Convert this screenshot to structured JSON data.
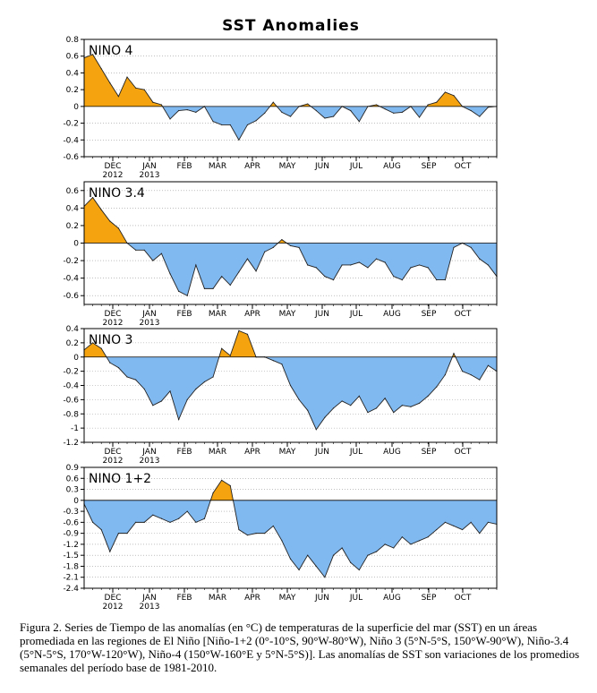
{
  "title": "SST Anomalies",
  "caption": "Figura 2. Series de Tiempo de las anomalías (en °C) de temperaturas de la superficie del mar (SST) en un áreas promediada en las regiones de El Niño [Niño-1+2 (0°-10°S, 90°W-80°W), Niño 3 (5°N-5°S, 150°W-90°W), Niño-3.4 (5°N-5°S, 170°W-120°W), Niño-4 (150°W-160°E y 5°N-5°S)]. Las anomalías de SST son variaciones de los promedios semanales del período base de 1981-2010.",
  "colors": {
    "positive": "#f5a30f",
    "negative": "#80b8f0",
    "grid": "#999999",
    "axis": "#000000"
  },
  "chart_data": [
    {
      "type": "area",
      "label": "NINO 4",
      "x_month_labels": [
        [
          "DEC",
          "2012"
        ],
        [
          "JAN",
          "2013"
        ],
        [
          "FEB",
          ""
        ],
        [
          "MAR",
          ""
        ],
        [
          "APR",
          ""
        ],
        [
          "MAY",
          ""
        ],
        [
          "JUN",
          ""
        ],
        [
          "JUL",
          ""
        ],
        [
          "AUG",
          ""
        ],
        [
          "SEP",
          ""
        ],
        [
          "OCT",
          ""
        ]
      ],
      "y_ticks": [
        "-0.6",
        "-0.4",
        "-0.2",
        "0",
        "0.2",
        "0.4",
        "0.6",
        "0.8"
      ],
      "ylim": [
        -0.6,
        0.8
      ],
      "week_index": [
        0,
        1,
        2,
        3,
        4,
        5,
        6,
        7,
        8,
        9,
        10,
        11,
        12,
        13,
        14,
        15,
        16,
        17,
        18,
        19,
        20,
        21,
        22,
        23,
        24,
        25,
        26,
        27,
        28,
        29,
        30,
        31,
        32,
        33,
        34,
        35,
        36,
        37,
        38,
        39,
        40,
        41,
        42,
        43,
        44,
        45,
        46,
        47,
        48
      ],
      "values": [
        0.58,
        0.62,
        0.45,
        0.28,
        0.12,
        0.35,
        0.22,
        0.2,
        0.05,
        0.02,
        -0.15,
        -0.05,
        -0.04,
        -0.07,
        0.0,
        -0.18,
        -0.22,
        -0.22,
        -0.4,
        -0.22,
        -0.17,
        -0.08,
        0.05,
        -0.07,
        -0.12,
        0.0,
        0.03,
        -0.05,
        -0.14,
        -0.12,
        0.0,
        -0.05,
        -0.18,
        0.0,
        0.02,
        -0.03,
        -0.08,
        -0.07,
        0.0,
        -0.13,
        0.02,
        0.05,
        0.17,
        0.13,
        0.0,
        -0.05,
        -0.12,
        -0.01,
        0.0
      ]
    },
    {
      "type": "area",
      "label": "NINO 3.4",
      "x_month_labels": [
        [
          "DEC",
          "2012"
        ],
        [
          "JAN",
          "2013"
        ],
        [
          "FEB",
          ""
        ],
        [
          "MAR",
          ""
        ],
        [
          "APR",
          ""
        ],
        [
          "MAY",
          ""
        ],
        [
          "JUN",
          ""
        ],
        [
          "JUL",
          ""
        ],
        [
          "AUG",
          ""
        ],
        [
          "SEP",
          ""
        ],
        [
          "OCT",
          ""
        ]
      ],
      "y_ticks": [
        "-0.6",
        "-0.4",
        "-0.2",
        "0",
        "0.2",
        "0.4",
        "0.6"
      ],
      "ylim": [
        -0.7,
        0.7
      ],
      "week_index": [
        0,
        1,
        2,
        3,
        4,
        5,
        6,
        7,
        8,
        9,
        10,
        11,
        12,
        13,
        14,
        15,
        16,
        17,
        18,
        19,
        20,
        21,
        22,
        23,
        24,
        25,
        26,
        27,
        28,
        29,
        30,
        31,
        32,
        33,
        34,
        35,
        36,
        37,
        38,
        39,
        40,
        41,
        42,
        43,
        44,
        45,
        46,
        47,
        48
      ],
      "values": [
        0.42,
        0.52,
        0.38,
        0.25,
        0.17,
        0.0,
        -0.08,
        -0.08,
        -0.2,
        -0.12,
        -0.35,
        -0.55,
        -0.6,
        -0.25,
        -0.52,
        -0.52,
        -0.38,
        -0.48,
        -0.33,
        -0.18,
        -0.32,
        -0.1,
        -0.05,
        0.04,
        -0.03,
        -0.05,
        -0.25,
        -0.28,
        -0.38,
        -0.42,
        -0.25,
        -0.25,
        -0.22,
        -0.28,
        -0.18,
        -0.22,
        -0.38,
        -0.42,
        -0.28,
        -0.25,
        -0.28,
        -0.42,
        -0.42,
        -0.05,
        0.0,
        -0.05,
        -0.18,
        -0.25,
        -0.38
      ]
    },
    {
      "type": "area",
      "label": "NINO 3",
      "x_month_labels": [
        [
          "DEC",
          "2012"
        ],
        [
          "JAN",
          "2013"
        ],
        [
          "FEB",
          ""
        ],
        [
          "MAR",
          ""
        ],
        [
          "APR",
          ""
        ],
        [
          "MAY",
          ""
        ],
        [
          "JUN",
          ""
        ],
        [
          "JUL",
          ""
        ],
        [
          "AUG",
          ""
        ],
        [
          "SEP",
          ""
        ],
        [
          "OCT",
          ""
        ]
      ],
      "y_ticks": [
        "-1.2",
        "-1",
        "-0.8",
        "-0.6",
        "-0.4",
        "-0.2",
        "0",
        "0.2",
        "0.4"
      ],
      "ylim": [
        -1.2,
        0.4
      ],
      "week_index": [
        0,
        1,
        2,
        3,
        4,
        5,
        6,
        7,
        8,
        9,
        10,
        11,
        12,
        13,
        14,
        15,
        16,
        17,
        18,
        19,
        20,
        21,
        22,
        23,
        24,
        25,
        26,
        27,
        28,
        29,
        30,
        31,
        32,
        33,
        34,
        35,
        36,
        37,
        38,
        39,
        40,
        41,
        42,
        43,
        44,
        45,
        46,
        47,
        48
      ],
      "values": [
        0.1,
        0.2,
        0.12,
        -0.08,
        -0.15,
        -0.28,
        -0.32,
        -0.45,
        -0.68,
        -0.62,
        -0.48,
        -0.88,
        -0.6,
        -0.45,
        -0.35,
        -0.28,
        0.12,
        0.02,
        0.37,
        0.32,
        0.0,
        0.0,
        -0.05,
        -0.1,
        -0.4,
        -0.6,
        -0.75,
        -1.02,
        -0.85,
        -0.72,
        -0.62,
        -0.68,
        -0.55,
        -0.78,
        -0.72,
        -0.58,
        -0.78,
        -0.68,
        -0.7,
        -0.65,
        -0.55,
        -0.42,
        -0.25,
        0.05,
        -0.2,
        -0.25,
        -0.32,
        -0.12,
        -0.2
      ]
    },
    {
      "type": "area",
      "label": "NINO 1+2",
      "x_month_labels": [
        [
          "DEC",
          "2012"
        ],
        [
          "JAN",
          "2013"
        ],
        [
          "FEB",
          ""
        ],
        [
          "MAR",
          ""
        ],
        [
          "APR",
          ""
        ],
        [
          "MAY",
          ""
        ],
        [
          "JUN",
          ""
        ],
        [
          "JUL",
          ""
        ],
        [
          "AUG",
          ""
        ],
        [
          "SEP",
          ""
        ],
        [
          "OCT",
          ""
        ]
      ],
      "y_ticks": [
        "-2.4",
        "-2.1",
        "-1.8",
        "-1.5",
        "-1.2",
        "-0.9",
        "-0.6",
        "-0.3",
        "0",
        "0.3",
        "0.6",
        "0.9"
      ],
      "ylim": [
        -2.4,
        0.9
      ],
      "week_index": [
        0,
        1,
        2,
        3,
        4,
        5,
        6,
        7,
        8,
        9,
        10,
        11,
        12,
        13,
        14,
        15,
        16,
        17,
        18,
        19,
        20,
        21,
        22,
        23,
        24,
        25,
        26,
        27,
        28,
        29,
        30,
        31,
        32,
        33,
        34,
        35,
        36,
        37,
        38,
        39,
        40,
        41,
        42,
        43,
        44,
        45,
        46,
        47,
        48
      ],
      "values": [
        -0.1,
        -0.6,
        -0.8,
        -1.4,
        -0.9,
        -0.9,
        -0.6,
        -0.6,
        -0.4,
        -0.5,
        -0.6,
        -0.5,
        -0.3,
        -0.6,
        -0.5,
        0.2,
        0.55,
        0.4,
        -0.8,
        -0.95,
        -0.9,
        -0.9,
        -0.7,
        -1.1,
        -1.6,
        -1.9,
        -1.5,
        -1.8,
        -2.1,
        -1.5,
        -1.3,
        -1.7,
        -1.9,
        -1.5,
        -1.4,
        -1.2,
        -1.3,
        -1.0,
        -1.2,
        -1.1,
        -1.0,
        -0.8,
        -0.6,
        -0.7,
        -0.8,
        -0.6,
        -0.9,
        -0.6,
        -0.65
      ]
    }
  ]
}
